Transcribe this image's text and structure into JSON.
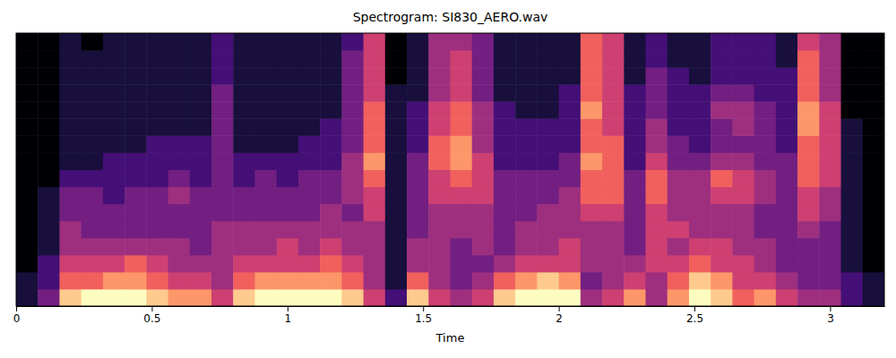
{
  "chart_data": {
    "type": "heatmap",
    "title": "Spectrogram: SI830_AERO.wav",
    "x_label": "Time",
    "xlim": [
      0,
      3.2
    ],
    "xticks": [
      0,
      0.5,
      1,
      1.5,
      2,
      2.5,
      3
    ],
    "tick_labels": "x",
    "color": "magma",
    "zlim": [
      0,
      9
    ],
    "cells": [
      [
        1,
        1,
        0,
        0,
        0,
        0,
        0,
        0,
        0,
        0,
        0,
        0,
        0,
        0,
        0,
        0
      ],
      [
        3,
        2,
        2,
        1,
        1,
        1,
        1,
        0,
        0,
        0,
        0,
        0,
        0,
        0,
        0,
        0
      ],
      [
        8,
        6,
        5,
        4,
        4,
        3,
        3,
        2,
        1,
        1,
        1,
        1,
        1,
        1,
        1,
        1
      ],
      [
        9,
        6,
        5,
        4,
        3,
        3,
        3,
        2,
        1,
        1,
        1,
        1,
        1,
        1,
        1,
        0
      ],
      [
        9,
        7,
        5,
        4,
        3,
        3,
        2,
        2,
        2,
        1,
        1,
        1,
        1,
        1,
        1,
        1
      ],
      [
        9,
        7,
        6,
        4,
        3,
        3,
        3,
        2,
        2,
        1,
        1,
        1,
        1,
        1,
        1,
        1
      ],
      [
        8,
        6,
        5,
        4,
        3,
        3,
        3,
        2,
        2,
        2,
        1,
        1,
        1,
        1,
        1,
        1
      ],
      [
        7,
        5,
        4,
        4,
        3,
        3,
        4,
        3,
        2,
        2,
        1,
        1,
        1,
        1,
        1,
        1
      ],
      [
        7,
        5,
        4,
        3,
        3,
        3,
        3,
        2,
        2,
        2,
        1,
        1,
        1,
        1,
        1,
        1
      ],
      [
        5,
        4,
        4,
        4,
        4,
        3,
        3,
        3,
        3,
        3,
        3,
        3,
        3,
        2,
        2,
        2
      ],
      [
        8,
        6,
        5,
        4,
        4,
        3,
        3,
        2,
        2,
        1,
        1,
        1,
        1,
        1,
        1,
        1
      ],
      [
        9,
        7,
        5,
        4,
        4,
        3,
        3,
        3,
        2,
        1,
        1,
        1,
        1,
        1,
        1,
        1
      ],
      [
        9,
        7,
        5,
        5,
        4,
        3,
        3,
        2,
        2,
        1,
        1,
        1,
        1,
        1,
        1,
        1
      ],
      [
        9,
        7,
        5,
        4,
        4,
        3,
        3,
        3,
        2,
        2,
        1,
        1,
        1,
        1,
        1,
        1
      ],
      [
        9,
        7,
        6,
        5,
        4,
        4,
        3,
        3,
        2,
        2,
        2,
        1,
        1,
        1,
        1,
        1
      ],
      [
        8,
        6,
        5,
        4,
        4,
        3,
        4,
        4,
        4,
        3,
        3,
        3,
        3,
        3,
        3,
        2
      ],
      [
        5,
        4,
        4,
        4,
        4,
        5,
        5,
        6,
        7,
        6,
        6,
        6,
        5,
        5,
        5,
        5
      ],
      [
        2,
        1,
        1,
        1,
        1,
        1,
        1,
        1,
        1,
        1,
        1,
        1,
        1,
        0,
        0,
        0
      ],
      [
        8,
        6,
        4,
        4,
        3,
        3,
        3,
        3,
        3,
        2,
        2,
        2,
        1,
        1,
        1,
        1
      ],
      [
        5,
        4,
        4,
        4,
        4,
        4,
        5,
        5,
        6,
        6,
        5,
        5,
        4,
        4,
        4,
        4
      ],
      [
        4,
        3,
        3,
        3,
        4,
        4,
        5,
        6,
        7,
        7,
        6,
        6,
        5,
        5,
        5,
        4
      ],
      [
        5,
        4,
        3,
        4,
        4,
        4,
        5,
        5,
        5,
        4,
        4,
        4,
        3,
        3,
        3,
        3
      ],
      [
        8,
        6,
        4,
        3,
        3,
        3,
        3,
        3,
        2,
        2,
        2,
        2,
        1,
        1,
        1,
        1
      ],
      [
        9,
        7,
        5,
        4,
        4,
        3,
        3,
        3,
        2,
        2,
        2,
        1,
        1,
        1,
        1,
        1
      ],
      [
        9,
        8,
        5,
        4,
        4,
        4,
        3,
        3,
        2,
        2,
        2,
        1,
        1,
        1,
        1,
        1
      ],
      [
        9,
        7,
        5,
        5,
        4,
        4,
        4,
        3,
        3,
        2,
        2,
        2,
        2,
        1,
        1,
        1
      ],
      [
        4,
        3,
        4,
        4,
        4,
        5,
        6,
        6,
        7,
        6,
        6,
        7,
        6,
        6,
        6,
        6
      ],
      [
        5,
        4,
        4,
        4,
        4,
        5,
        6,
        6,
        6,
        6,
        5,
        5,
        5,
        5,
        5,
        5
      ],
      [
        7,
        5,
        4,
        3,
        3,
        3,
        3,
        3,
        2,
        2,
        2,
        2,
        2,
        1,
        1,
        1
      ],
      [
        4,
        4,
        5,
        5,
        5,
        5,
        6,
        6,
        5,
        4,
        4,
        3,
        3,
        3,
        2,
        2
      ],
      [
        7,
        6,
        5,
        4,
        5,
        4,
        4,
        4,
        3,
        3,
        2,
        2,
        2,
        2,
        1,
        1
      ],
      [
        9,
        8,
        6,
        5,
        4,
        4,
        4,
        4,
        3,
        2,
        2,
        2,
        2,
        1,
        1,
        1
      ],
      [
        8,
        7,
        5,
        5,
        4,
        4,
        5,
        6,
        4,
        3,
        3,
        4,
        3,
        2,
        2,
        2
      ],
      [
        6,
        5,
        5,
        4,
        4,
        4,
        5,
        5,
        4,
        3,
        4,
        4,
        3,
        2,
        2,
        2
      ],
      [
        7,
        5,
        4,
        4,
        3,
        3,
        4,
        4,
        3,
        3,
        3,
        3,
        2,
        2,
        2,
        2
      ],
      [
        5,
        4,
        3,
        3,
        3,
        3,
        3,
        3,
        3,
        2,
        2,
        2,
        2,
        2,
        1,
        1
      ],
      [
        4,
        3,
        3,
        3,
        4,
        5,
        5,
        6,
        6,
        6,
        7,
        7,
        6,
        6,
        6,
        5
      ],
      [
        4,
        3,
        3,
        3,
        3,
        4,
        4,
        5,
        5,
        5,
        5,
        5,
        4,
        4,
        4,
        4
      ],
      [
        2,
        2,
        1,
        1,
        1,
        1,
        1,
        1,
        1,
        1,
        1,
        0,
        0,
        0,
        0,
        0
      ],
      [
        1,
        1,
        0,
        0,
        0,
        0,
        0,
        0,
        0,
        0,
        0,
        0,
        0,
        0,
        0,
        0
      ]
    ]
  }
}
